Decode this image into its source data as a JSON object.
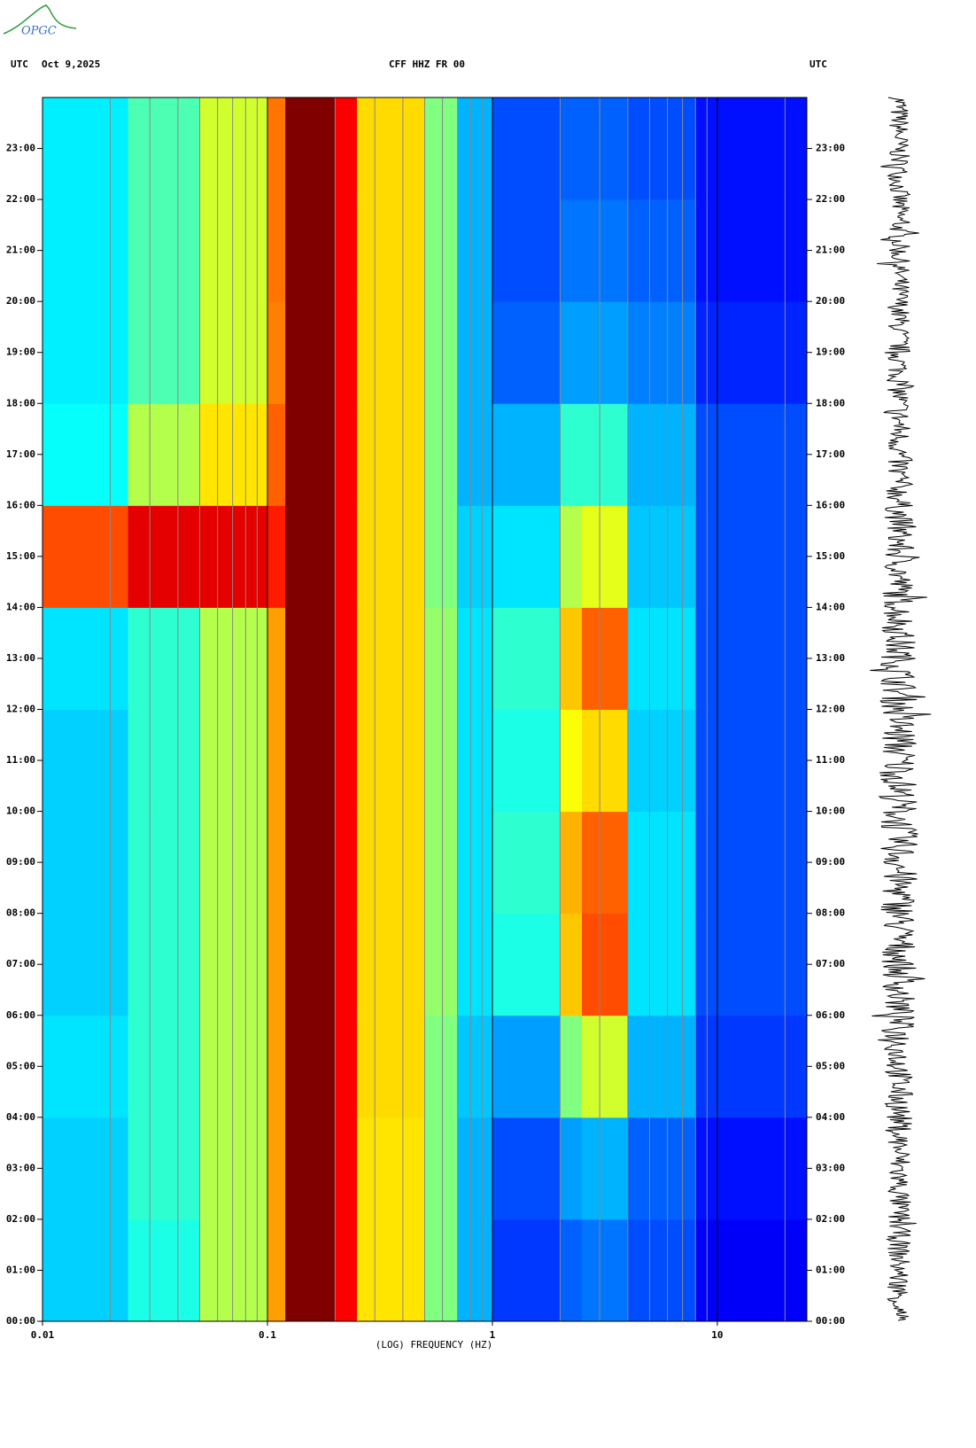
{
  "logo": "OPGC",
  "chart_data": {
    "type": "spectrogram",
    "header_left": "UTC",
    "date": "Oct 9,2025",
    "title": "CFF HHZ FR 00",
    "header_right": "UTC",
    "xlabel": "(LOG) FREQUENCY (HZ)",
    "xscale": "log",
    "xlim": [
      0.01,
      25
    ],
    "xticks": [
      {
        "value": 0.01,
        "label": "0.01"
      },
      {
        "value": 0.1,
        "label": "0.1"
      },
      1,
      10
    ],
    "xminor": [
      0.02,
      0.03,
      0.04,
      0.05,
      0.06,
      0.07,
      0.08,
      0.09,
      0.2,
      0.3,
      0.4,
      0.5,
      0.6,
      0.7,
      0.8,
      0.9,
      2,
      3,
      4,
      5,
      6,
      7,
      8,
      9,
      20
    ],
    "ylim": [
      0,
      24
    ],
    "yticks": [
      {
        "value": 0,
        "label": "00:00"
      },
      {
        "value": 1,
        "label": "01:00"
      },
      {
        "value": 2,
        "label": "02:00"
      },
      {
        "value": 3,
        "label": "03:00"
      },
      {
        "value": 4,
        "label": "04:00"
      },
      {
        "value": 5,
        "label": "05:00"
      },
      {
        "value": 6,
        "label": "06:00"
      },
      {
        "value": 7,
        "label": "07:00"
      },
      {
        "value": 8,
        "label": "08:00"
      },
      {
        "value": 9,
        "label": "09:00"
      },
      {
        "value": 10,
        "label": "10:00"
      },
      {
        "value": 11,
        "label": "11:00"
      },
      {
        "value": 12,
        "label": "12:00"
      },
      {
        "value": 13,
        "label": "13:00"
      },
      {
        "value": 14,
        "label": "14:00"
      },
      {
        "value": 15,
        "label": "15:00"
      },
      {
        "value": 16,
        "label": "16:00"
      },
      {
        "value": 17,
        "label": "17:00"
      },
      {
        "value": 18,
        "label": "18:00"
      },
      {
        "value": 19,
        "label": "19:00"
      },
      {
        "value": 20,
        "label": "20:00"
      },
      {
        "value": 21,
        "label": "21:00"
      },
      {
        "value": 22,
        "label": "22:00"
      },
      {
        "value": 23,
        "label": "23:00"
      }
    ],
    "freq_bins": [
      0.01,
      0.024,
      0.05,
      0.1,
      0.12,
      0.2,
      0.25,
      0.5,
      0.7,
      1,
      2,
      2.5,
      4,
      8,
      25
    ],
    "time_bins": [
      0,
      2,
      4,
      6,
      8,
      10,
      12,
      14,
      16,
      18,
      20,
      22,
      24
    ],
    "colormap": "jet",
    "values": [
      [
        0.33,
        0.4,
        0.55,
        0.72,
        1,
        0.88,
        0.65,
        0.5,
        0.3,
        0.18,
        0.22,
        0.24,
        0.2,
        0.12
      ],
      [
        0.33,
        0.42,
        0.55,
        0.72,
        1,
        0.88,
        0.65,
        0.5,
        0.3,
        0.2,
        0.28,
        0.3,
        0.22,
        0.14
      ],
      [
        0.35,
        0.42,
        0.55,
        0.72,
        1,
        0.88,
        0.66,
        0.5,
        0.32,
        0.28,
        0.5,
        0.58,
        0.3,
        0.18
      ],
      [
        0.33,
        0.42,
        0.55,
        0.72,
        1,
        0.88,
        0.66,
        0.52,
        0.35,
        0.4,
        0.68,
        0.8,
        0.35,
        0.2
      ],
      [
        0.33,
        0.42,
        0.55,
        0.72,
        1,
        0.88,
        0.66,
        0.52,
        0.35,
        0.42,
        0.7,
        0.78,
        0.35,
        0.2
      ],
      [
        0.33,
        0.42,
        0.55,
        0.72,
        1,
        0.88,
        0.66,
        0.52,
        0.35,
        0.4,
        0.62,
        0.66,
        0.33,
        0.2
      ],
      [
        0.35,
        0.42,
        0.55,
        0.72,
        1,
        0.88,
        0.66,
        0.52,
        0.35,
        0.42,
        0.68,
        0.78,
        0.35,
        0.2
      ],
      [
        0.8,
        0.9,
        0.9,
        0.85,
        1,
        0.88,
        0.66,
        0.5,
        0.33,
        0.35,
        0.55,
        0.6,
        0.32,
        0.2
      ],
      [
        0.38,
        0.55,
        0.65,
        0.78,
        1,
        0.88,
        0.66,
        0.5,
        0.3,
        0.3,
        0.42,
        0.42,
        0.3,
        0.2
      ],
      [
        0.36,
        0.45,
        0.58,
        0.75,
        1,
        0.88,
        0.66,
        0.5,
        0.3,
        0.22,
        0.28,
        0.28,
        0.25,
        0.16
      ],
      [
        0.36,
        0.45,
        0.58,
        0.76,
        1,
        0.88,
        0.66,
        0.5,
        0.3,
        0.2,
        0.24,
        0.24,
        0.22,
        0.14
      ],
      [
        0.36,
        0.45,
        0.58,
        0.76,
        1,
        0.88,
        0.66,
        0.5,
        0.3,
        0.2,
        0.22,
        0.22,
        0.2,
        0.14
      ]
    ]
  }
}
